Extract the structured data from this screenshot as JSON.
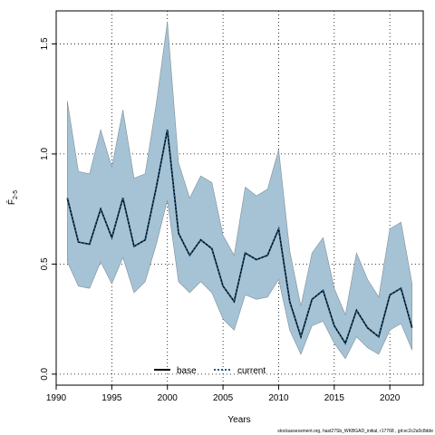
{
  "chart_data": {
    "type": "line",
    "xlabel": "Years",
    "ylabel": "F̄",
    "ylabel_subscript": "2-5",
    "xlim": [
      1990,
      2023
    ],
    "ylim": [
      -0.05,
      1.65
    ],
    "x_ticks": [
      1990,
      1995,
      2000,
      2005,
      2010,
      2015,
      2020
    ],
    "y_ticks": [
      0.0,
      0.5,
      1.0,
      1.5
    ],
    "y_tick_labels": [
      "0.0",
      "0.5",
      "1.0",
      "1.5"
    ],
    "grid": true,
    "legend_position": "bottom-center",
    "x": [
      1991,
      1992,
      1993,
      1994,
      1995,
      1996,
      1997,
      1998,
      1999,
      2000,
      2001,
      2002,
      2003,
      2004,
      2005,
      2006,
      2007,
      2008,
      2009,
      2010,
      2011,
      2012,
      2013,
      2014,
      2015,
      2016,
      2017,
      2018,
      2019,
      2020,
      2021,
      2022
    ],
    "series": [
      {
        "name": "base",
        "color": "#000000",
        "style": "solid",
        "values": [
          0.8,
          0.6,
          0.59,
          0.75,
          0.62,
          0.8,
          0.58,
          0.61,
          0.85,
          1.11,
          0.64,
          0.54,
          0.61,
          0.57,
          0.4,
          0.33,
          0.55,
          0.52,
          0.54,
          0.66,
          0.33,
          0.17,
          0.34,
          0.38,
          0.22,
          0.14,
          0.29,
          0.21,
          0.17,
          0.36,
          0.39,
          0.21
        ]
      },
      {
        "name": "current",
        "color": "#1f5a85",
        "style": "dotted",
        "values": [
          0.8,
          0.6,
          0.59,
          0.75,
          0.62,
          0.8,
          0.58,
          0.61,
          0.85,
          1.11,
          0.64,
          0.54,
          0.61,
          0.57,
          0.4,
          0.33,
          0.55,
          0.52,
          0.54,
          0.66,
          0.33,
          0.17,
          0.34,
          0.38,
          0.22,
          0.14,
          0.29,
          0.21,
          0.17,
          0.36,
          0.39,
          0.21
        ]
      }
    ],
    "band": {
      "color": "#a5c3d5",
      "lower": [
        0.51,
        0.4,
        0.39,
        0.51,
        0.41,
        0.53,
        0.37,
        0.42,
        0.59,
        0.79,
        0.42,
        0.37,
        0.42,
        0.37,
        0.25,
        0.2,
        0.36,
        0.34,
        0.35,
        0.43,
        0.2,
        0.09,
        0.22,
        0.24,
        0.14,
        0.07,
        0.17,
        0.12,
        0.09,
        0.2,
        0.23,
        0.11
      ],
      "upper": [
        1.24,
        0.92,
        0.91,
        1.11,
        0.94,
        1.2,
        0.89,
        0.91,
        1.23,
        1.6,
        0.96,
        0.8,
        0.9,
        0.87,
        0.63,
        0.54,
        0.85,
        0.81,
        0.84,
        1.02,
        0.56,
        0.31,
        0.55,
        0.62,
        0.39,
        0.27,
        0.55,
        0.43,
        0.35,
        0.66,
        0.69,
        0.41
      ]
    }
  },
  "footer": "stockassessment.org, hast27Sb_WKBGAD_initial, r17768 , git:ec2c2a0c8dde"
}
